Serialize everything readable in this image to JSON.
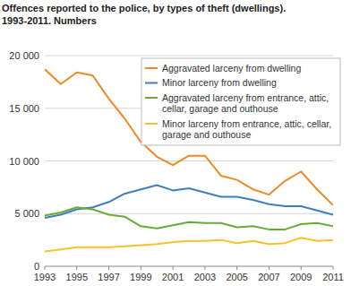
{
  "chart_data": {
    "type": "line",
    "title": "Offences reported to the police, by types of theft (dwellings).",
    "subtitle": "1993-2011. Numbers",
    "x": [
      1993,
      1994,
      1995,
      1996,
      1997,
      1998,
      1999,
      2000,
      2001,
      2002,
      2003,
      2004,
      2005,
      2006,
      2007,
      2008,
      2009,
      2010,
      2011
    ],
    "xlim": [
      1993,
      2011
    ],
    "xticks": [
      1993,
      1995,
      1997,
      1999,
      2001,
      2003,
      2005,
      2007,
      2009,
      2011
    ],
    "ylim": [
      0,
      20000
    ],
    "yticks": [
      0,
      {
        "value": 5000,
        "label": "5 000"
      },
      {
        "value": 10000,
        "label": "10 000"
      },
      {
        "value": 15000,
        "label": "15 000"
      },
      {
        "value": 20000,
        "label": "20 000"
      }
    ],
    "grid": true,
    "legend": "top-right",
    "series": [
      {
        "name": "Aggravated larceny from dwelling",
        "color": "#f08a24",
        "values": [
          18700,
          17300,
          18400,
          18100,
          15900,
          14000,
          11800,
          10400,
          9600,
          10500,
          10500,
          8600,
          8200,
          7300,
          6800,
          8100,
          9000,
          7300,
          5800
        ]
      },
      {
        "name": "Minor larceny from dwelling",
        "color": "#3f7fbf",
        "values": [
          4600,
          4900,
          5400,
          5600,
          6100,
          6900,
          7300,
          7700,
          7200,
          7400,
          7000,
          6600,
          6600,
          6300,
          5900,
          5700,
          5700,
          5300,
          4900
        ]
      },
      {
        "name": "Aggravated larceny from entrance, attic, cellar, garage and outhouse",
        "color": "#6aaa3a",
        "values": [
          4800,
          5100,
          5600,
          5400,
          4900,
          4700,
          3800,
          3600,
          3900,
          4200,
          4100,
          4100,
          3700,
          3800,
          3500,
          3500,
          4000,
          4100,
          3800
        ]
      },
      {
        "name": "Minor larceny from entrance, attic, cellar, garage and outhouse",
        "color": "#f5c42c",
        "values": [
          1400,
          1600,
          1800,
          1800,
          1800,
          1900,
          2000,
          2100,
          2300,
          2400,
          2400,
          2500,
          2200,
          2400,
          2100,
          2200,
          2700,
          2400,
          2500
        ]
      }
    ]
  }
}
